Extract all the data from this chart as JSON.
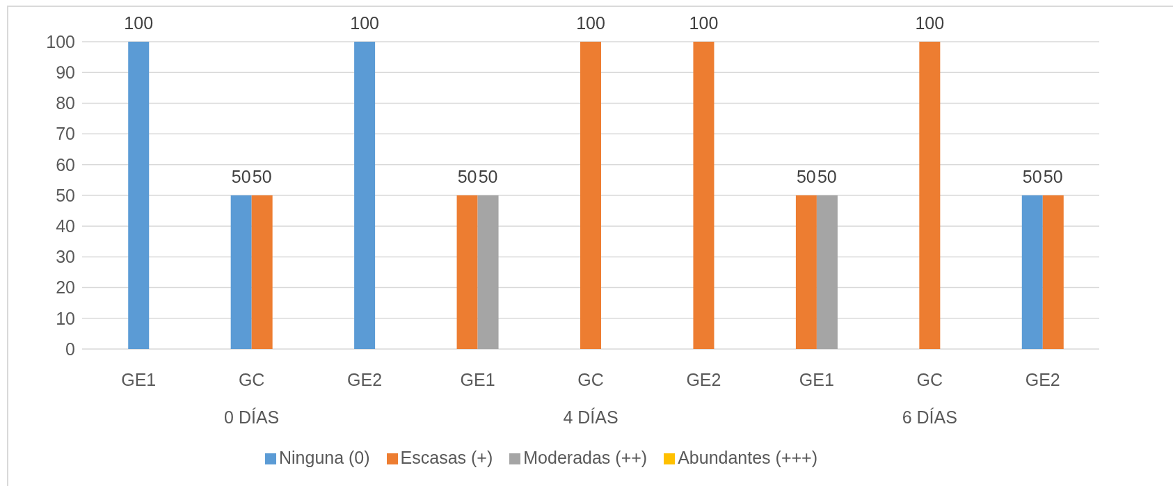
{
  "chart_data": {
    "type": "bar",
    "categories": [
      "GE1",
      "GC",
      "GE2",
      "GE1",
      "GC",
      "GE2",
      "GE1",
      "GC",
      "GE2"
    ],
    "annotations": [
      "0 DÍAS",
      "4 DÍAS",
      "6 DÍAS"
    ],
    "series": [
      {
        "name": "Ninguna (0)",
        "color": "#5b9bd5",
        "values": [
          100,
          50,
          100,
          null,
          null,
          null,
          null,
          null,
          50
        ]
      },
      {
        "name": "Escasas (+)",
        "color": "#ed7d31",
        "values": [
          null,
          50,
          null,
          50,
          100,
          100,
          50,
          100,
          50
        ]
      },
      {
        "name": "Moderadas (++)",
        "color": "#a5a5a5",
        "values": [
          null,
          null,
          null,
          50,
          null,
          null,
          50,
          null,
          null
        ]
      },
      {
        "name": "Abundantes (+++)",
        "color": "#ffc000",
        "values": [
          null,
          null,
          null,
          null,
          null,
          null,
          null,
          null,
          null
        ]
      }
    ],
    "ylim": [
      0,
      100
    ],
    "yticks": [
      0,
      10,
      20,
      30,
      40,
      50,
      60,
      70,
      80,
      90,
      100
    ],
    "grid": "y",
    "data_labels": true,
    "legend": "bottom"
  }
}
